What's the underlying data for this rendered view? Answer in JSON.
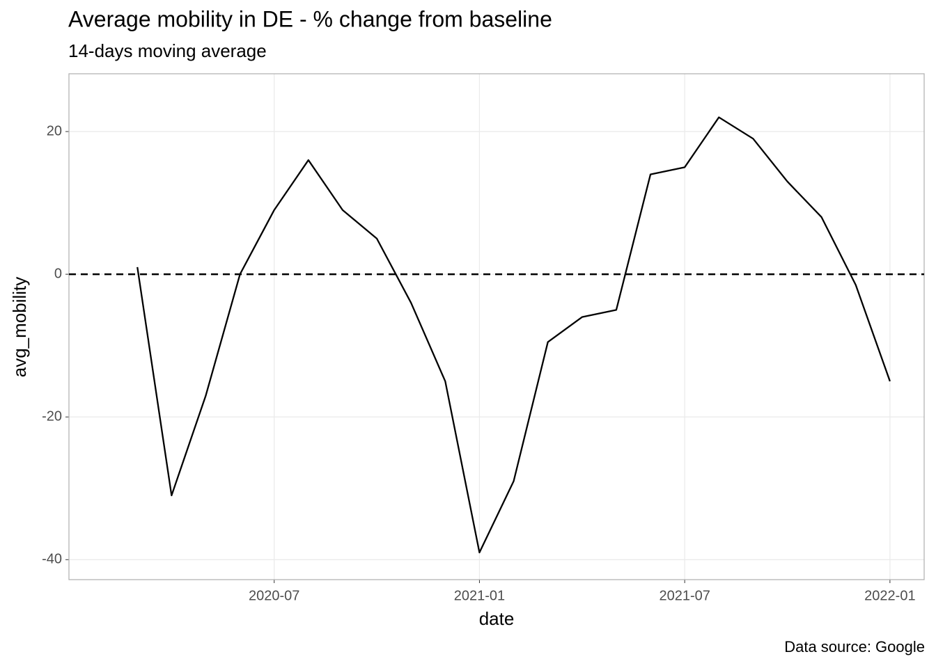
{
  "chart_data": {
    "type": "line",
    "title": "Average mobility in DE - % change from baseline",
    "subtitle": "14-days moving average",
    "x_label": "date",
    "y_label": "avg_mobility",
    "caption": "Data source: Google",
    "x": [
      "2020-03",
      "2020-04",
      "2020-05",
      "2020-06",
      "2020-07",
      "2020-08",
      "2020-09",
      "2020-10",
      "2020-11",
      "2020-12",
      "2021-01",
      "2021-02",
      "2021-03",
      "2021-04",
      "2021-05",
      "2021-06",
      "2021-07",
      "2021-08",
      "2021-09",
      "2021-10",
      "2021-11",
      "2021-12",
      "2022-01"
    ],
    "series": [
      {
        "name": "avg_mobility",
        "color": "#000000",
        "values": [
          1,
          -31,
          -17,
          0,
          9,
          16,
          9,
          5,
          -4,
          -15,
          -39,
          -29,
          -9.5,
          -6,
          -5,
          14,
          15,
          22,
          19,
          13,
          8,
          -1.5,
          -15
        ]
      }
    ],
    "xlim": [
      "2020-01",
      "2022-02"
    ],
    "xticks": [
      "2020-07",
      "2021-01",
      "2021-07",
      "2022-01"
    ],
    "ylim": [
      -42.8,
      28.1
    ],
    "yticks": [
      -40,
      -20,
      0,
      20
    ],
    "hline": 0,
    "grid": true
  }
}
